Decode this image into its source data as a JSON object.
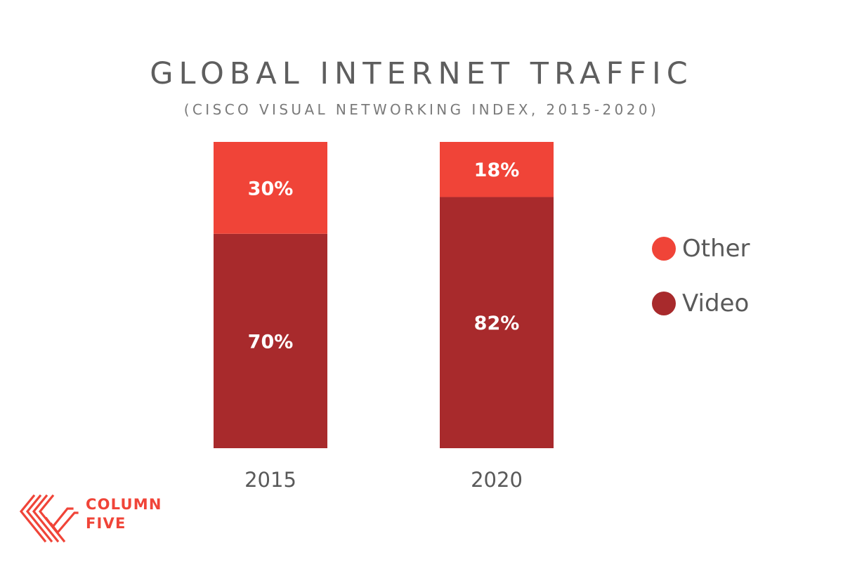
{
  "colors": {
    "other": "#f04438",
    "video": "#a82a2c",
    "title": "#5e5e5e",
    "axis_label": "#595959",
    "bar_label": "#ffffff",
    "brand": "#f04438"
  },
  "brand": {
    "icon": "column-five-logo-icon",
    "line1": "COLUMN",
    "line2": "FIVE"
  },
  "chart_data": {
    "type": "bar",
    "stacked": true,
    "title": "GLOBAL INTERNET TRAFFIC",
    "subtitle": "(CISCO VISUAL NETWORKING INDEX, 2015-2020)",
    "categories": [
      "2015",
      "2020"
    ],
    "series": [
      {
        "name": "Video",
        "values": [
          70,
          82
        ],
        "labels": [
          "70%",
          "82%"
        ],
        "color": "#a82a2c"
      },
      {
        "name": "Other",
        "values": [
          30,
          18
        ],
        "labels": [
          "30%",
          "18%"
        ],
        "color": "#f04438"
      }
    ],
    "legend": {
      "placement": "right",
      "items": [
        {
          "label": "Other",
          "color": "#f04438"
        },
        {
          "label": "Video",
          "color": "#a82a2c"
        }
      ]
    },
    "ylim": [
      0,
      100
    ],
    "grid": false,
    "yaxis_visible": false
  }
}
